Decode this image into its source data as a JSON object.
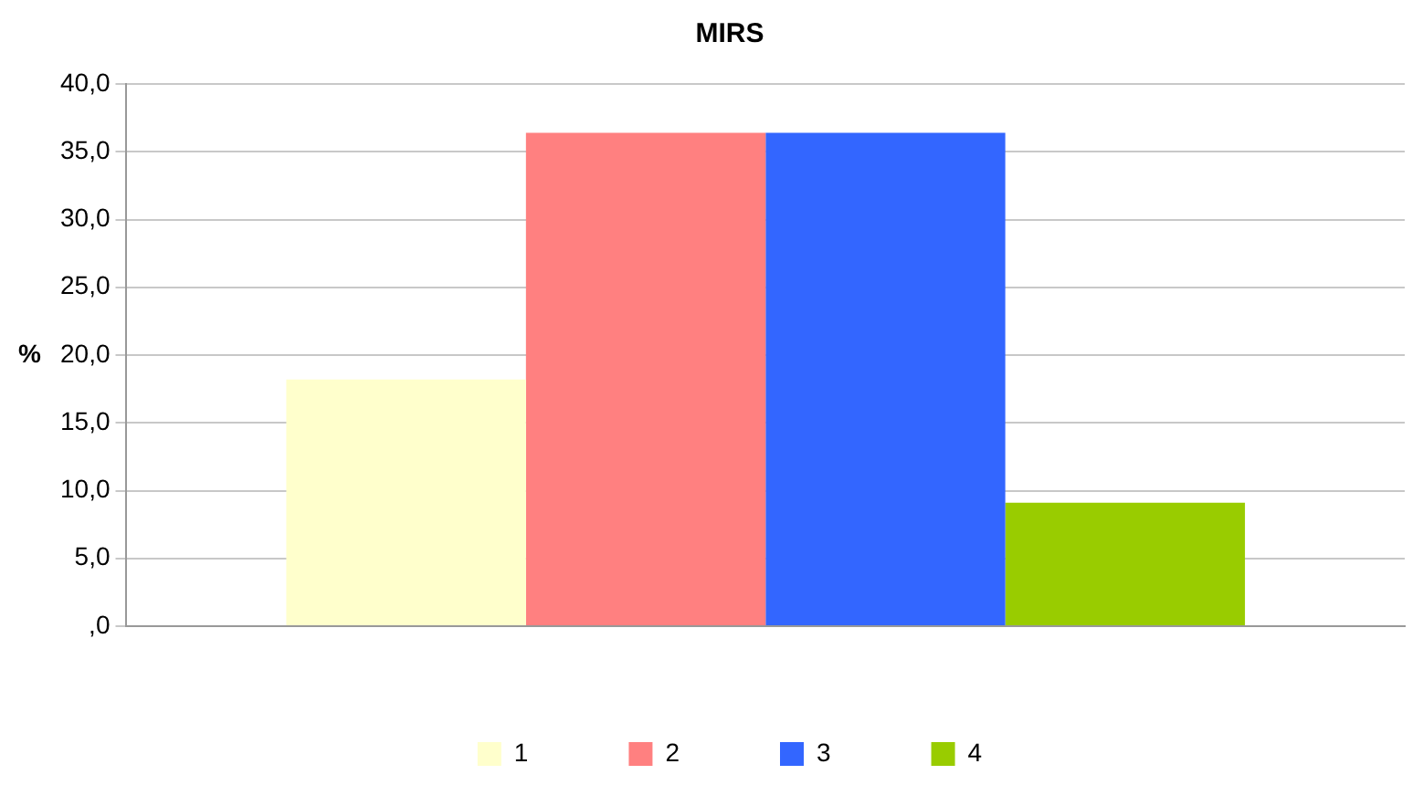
{
  "chart_data": {
    "type": "bar",
    "title": "MIRS",
    "ylabel": "%",
    "categories": [
      null
    ],
    "series": [
      {
        "name": "1",
        "color": "#ffffcc",
        "values": [
          18.2
        ]
      },
      {
        "name": "2",
        "color": "#ff8080",
        "values": [
          36.4
        ]
      },
      {
        "name": "3",
        "color": "#3366ff",
        "values": [
          36.4
        ]
      },
      {
        "name": "4",
        "color": "#99cc00",
        "values": [
          9.1
        ]
      }
    ],
    "ylim": [
      0,
      40
    ],
    "yticks": [
      {
        "value": 0,
        "label": ",0"
      },
      {
        "value": 5,
        "label": "5,0"
      },
      {
        "value": 10,
        "label": "10,0"
      },
      {
        "value": 15,
        "label": "15,0"
      },
      {
        "value": 20,
        "label": "20,0"
      },
      {
        "value": 25,
        "label": "25,0"
      },
      {
        "value": 30,
        "label": "30,0"
      },
      {
        "value": 35,
        "label": "35,0"
      },
      {
        "value": 40,
        "label": "40,0"
      }
    ],
    "grid": "y",
    "legend": "bottom",
    "tick_labels": "y"
  }
}
